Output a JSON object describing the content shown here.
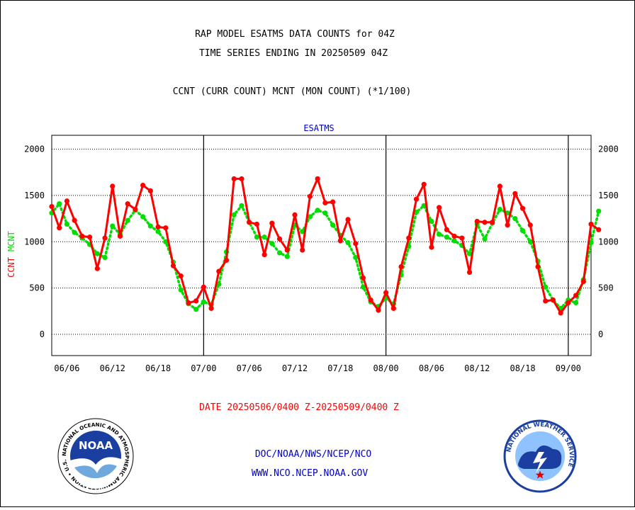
{
  "header": {
    "line1": "RAP MODEL ESATMS DATA COUNTS for 04Z",
    "line2": "TIME SERIES ENDING IN 20250509 04Z",
    "line3": "CCNT (CURR COUNT) MCNT (MON COUNT) (*1/100)"
  },
  "footer": {
    "date_range": "DATE 20250506/0400 Z-20250509/0400 Z",
    "org": "DOC/NOAA/NWS/NCEP/NCO",
    "url": "WWW.NCO.NCEP.NOAA.GOV"
  },
  "logos": {
    "noaa_text": "NOAA",
    "noaa_ring": "NATIONAL OCEANIC AND ATMOSPHERIC ADMINISTRATION • U.S. DEPARTMENT OF COMMERCE",
    "nws_ring": "NATIONAL WEATHER SERVICE"
  },
  "colors": {
    "ccnt": "#ff0000",
    "mcnt": "#00dd00",
    "subtitle": "#0000cc",
    "date": "#ff0000",
    "footer": "#0000cc"
  },
  "chart_data": {
    "type": "line",
    "title": "ESATMS",
    "ylabel_parts": [
      {
        "text": "CCNT",
        "color": "#ff0000"
      },
      {
        "text": "MCNT",
        "color": "#00dd00"
      }
    ],
    "ylim": [
      -230,
      2150
    ],
    "yticks": [
      0,
      500,
      1000,
      1500,
      2000
    ],
    "xlim": [
      0,
      71
    ],
    "xticks": [
      {
        "x": 2,
        "label": "06/06"
      },
      {
        "x": 8,
        "label": "06/12"
      },
      {
        "x": 14,
        "label": "06/18"
      },
      {
        "x": 20,
        "label": "07/00"
      },
      {
        "x": 26,
        "label": "07/06"
      },
      {
        "x": 32,
        "label": "07/12"
      },
      {
        "x": 38,
        "label": "07/18"
      },
      {
        "x": 44,
        "label": "08/00"
      },
      {
        "x": 50,
        "label": "08/06"
      },
      {
        "x": 56,
        "label": "08/12"
      },
      {
        "x": 62,
        "label": "08/18"
      },
      {
        "x": 68,
        "label": "09/00"
      }
    ],
    "day_boundaries": [
      20,
      44,
      68
    ],
    "grid": "horizontal dotted",
    "series": [
      {
        "name": "CCNT",
        "style": "solid",
        "values": [
          1380,
          1150,
          1440,
          1230,
          1060,
          1050,
          710,
          1040,
          1600,
          1060,
          1410,
          1350,
          1610,
          1550,
          1160,
          1150,
          740,
          630,
          340,
          360,
          510,
          280,
          680,
          800,
          1680,
          1680,
          1210,
          1190,
          860,
          1200,
          1030,
          910,
          1290,
          910,
          1490,
          1680,
          1420,
          1430,
          1010,
          1240,
          980,
          610,
          370,
          260,
          450,
          280,
          730,
          1040,
          1460,
          1620,
          940,
          1370,
          1130,
          1060,
          1040,
          670,
          1220,
          1210,
          1210,
          1600,
          1180,
          1520,
          1360,
          1180,
          730,
          360,
          370,
          230,
          340,
          420,
          570,
          1190,
          1130
        ]
      },
      {
        "name": "MCNT",
        "style": "dotted",
        "values": [
          1310,
          1410,
          1190,
          1100,
          1040,
          970,
          870,
          830,
          1170,
          1080,
          1230,
          1340,
          1270,
          1170,
          1110,
          1000,
          780,
          480,
          330,
          270,
          350,
          320,
          540,
          890,
          1290,
          1390,
          1210,
          1050,
          1050,
          980,
          880,
          840,
          1180,
          1110,
          1270,
          1340,
          1310,
          1180,
          1070,
          990,
          830,
          510,
          350,
          300,
          390,
          330,
          640,
          950,
          1320,
          1390,
          1220,
          1080,
          1050,
          1010,
          960,
          870,
          1190,
          1030,
          1200,
          1350,
          1310,
          1250,
          1120,
          1000,
          790,
          510,
          370,
          280,
          370,
          340,
          590,
          990,
          1330
        ]
      }
    ]
  }
}
